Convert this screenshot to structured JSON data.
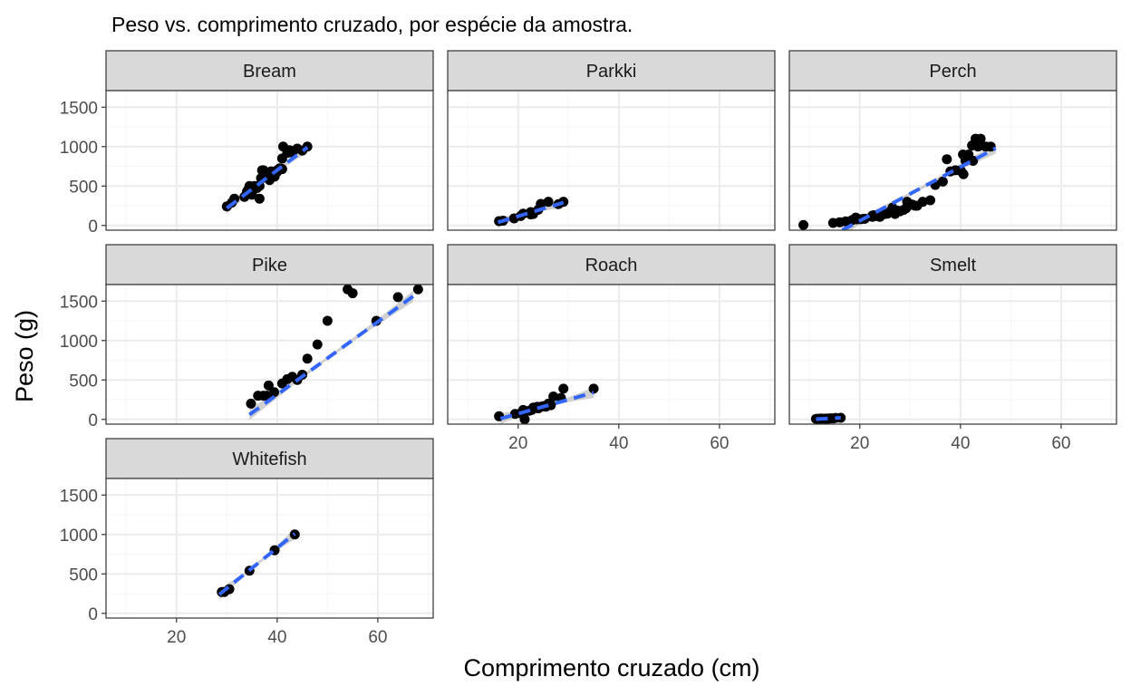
{
  "chart_data": {
    "type": "scatter",
    "title": "Peso vs. comprimento cruzado, por espécie da amostra.",
    "xlabel": "Comprimento cruzado (cm)",
    "ylabel": "Peso (g)",
    "xlim": [
      6,
      71
    ],
    "ylim": [
      -60,
      1710
    ],
    "x_ticks": [
      20,
      40,
      60
    ],
    "y_ticks": [
      0,
      500,
      1000,
      1500
    ],
    "grid": true,
    "colors": {
      "point": "#000000",
      "fit_line": "#3366ff",
      "ribbon": "#c8c8c8",
      "grid_major": "#ebebeb",
      "grid_minor": "#f5f5f5",
      "strip_fill": "#d9d9d9",
      "panel_border": "#333333"
    },
    "panels": [
      {
        "name": "Bream",
        "points": [
          [
            30,
            242
          ],
          [
            31,
            290
          ],
          [
            31.5,
            340
          ],
          [
            33.5,
            363
          ],
          [
            34,
            430
          ],
          [
            34.2,
            450
          ],
          [
            34.5,
            500
          ],
          [
            35,
            390
          ],
          [
            35,
            450
          ],
          [
            35.5,
            500
          ],
          [
            36,
            475
          ],
          [
            36.2,
            500
          ],
          [
            36.5,
            500
          ],
          [
            36.5,
            340
          ],
          [
            36.8,
            600
          ],
          [
            37,
            600
          ],
          [
            37,
            700
          ],
          [
            37.3,
            700
          ],
          [
            37.5,
            610
          ],
          [
            38,
            650
          ],
          [
            38.5,
            575
          ],
          [
            38.8,
            685
          ],
          [
            39.5,
            620
          ],
          [
            40,
            680
          ],
          [
            40,
            700
          ],
          [
            40.5,
            725
          ],
          [
            40.8,
            720
          ],
          [
            41,
            714
          ],
          [
            41,
            850
          ],
          [
            41.2,
            1000
          ],
          [
            42,
            920
          ],
          [
            42.5,
            955
          ],
          [
            43,
            925
          ],
          [
            44,
            975
          ],
          [
            45,
            950
          ],
          [
            46,
            1000
          ]
        ],
        "fit": {
          "x": [
            30,
            46
          ],
          "y": [
            220,
            990
          ]
        }
      },
      {
        "name": "Parkki",
        "points": [
          [
            16.2,
            55
          ],
          [
            17,
            60
          ],
          [
            19.2,
            90
          ],
          [
            20.5,
            120
          ],
          [
            21,
            150
          ],
          [
            22.5,
            140
          ],
          [
            22.5,
            170
          ],
          [
            23,
            145
          ],
          [
            24,
            200
          ],
          [
            24.5,
            273
          ],
          [
            26,
            300
          ],
          [
            28,
            270
          ],
          [
            29,
            300
          ]
        ],
        "fit": {
          "x": [
            16,
            29
          ],
          "y": [
            40,
            290
          ]
        }
      },
      {
        "name": "Perch",
        "points": [
          [
            8.8,
            5.9
          ],
          [
            14.7,
            32
          ],
          [
            16,
            40
          ],
          [
            17.2,
            51.5
          ],
          [
            18.5,
            70
          ],
          [
            19.2,
            100
          ],
          [
            19.4,
            78
          ],
          [
            20.2,
            80
          ],
          [
            20.8,
            85
          ],
          [
            21,
            85
          ],
          [
            22.5,
            110
          ],
          [
            22.5,
            115
          ],
          [
            22.5,
            125
          ],
          [
            22.8,
            130
          ],
          [
            23.5,
            120
          ],
          [
            23.5,
            120
          ],
          [
            23.5,
            130
          ],
          [
            24,
            135
          ],
          [
            24,
            110
          ],
          [
            24.2,
            130
          ],
          [
            24.5,
            150
          ],
          [
            25,
            145
          ],
          [
            25.5,
            150
          ],
          [
            25.9,
            170
          ],
          [
            26.5,
            225
          ],
          [
            27,
            145
          ],
          [
            27.5,
            188
          ],
          [
            28,
            180
          ],
          [
            28.7,
            197
          ],
          [
            29.2,
            218
          ],
          [
            29.4,
            300
          ],
          [
            30,
            260
          ],
          [
            30.4,
            265
          ],
          [
            31,
            250
          ],
          [
            31.4,
            250
          ],
          [
            32.5,
            300
          ],
          [
            34,
            320
          ],
          [
            35,
            514
          ],
          [
            36.5,
            556
          ],
          [
            37.3,
            840
          ],
          [
            38,
            685
          ],
          [
            39,
            700
          ],
          [
            40,
            700
          ],
          [
            40.1,
            690
          ],
          [
            40.5,
            900
          ],
          [
            40.6,
            650
          ],
          [
            41,
            820
          ],
          [
            41.5,
            850
          ],
          [
            41.6,
            900
          ],
          [
            42.3,
            1015
          ],
          [
            42.5,
            820
          ],
          [
            43,
            1100
          ],
          [
            43.5,
            1000
          ],
          [
            44,
            1100
          ],
          [
            45,
            1000
          ],
          [
            46,
            1000
          ]
        ],
        "fit": {
          "x": [
            16.5,
            47
          ],
          "y": [
            -60,
            980
          ]
        }
      },
      {
        "name": "Pike",
        "points": [
          [
            34.8,
            200
          ],
          [
            36.2,
            300
          ],
          [
            37.3,
            300
          ],
          [
            38,
            300
          ],
          [
            38.3,
            430
          ],
          [
            39.4,
            345
          ],
          [
            41,
            456
          ],
          [
            42,
            510
          ],
          [
            43,
            540
          ],
          [
            44,
            500
          ],
          [
            45,
            567
          ],
          [
            46,
            770
          ],
          [
            48,
            950
          ],
          [
            50,
            1250
          ],
          [
            54,
            1650
          ],
          [
            55,
            1600
          ],
          [
            59.7,
            1250
          ],
          [
            64,
            1550
          ],
          [
            68,
            1650
          ]
        ],
        "fit": {
          "x": [
            34.5,
            67
          ],
          "y": [
            60,
            1560
          ]
        }
      },
      {
        "name": "Roach",
        "points": [
          [
            16.2,
            40
          ],
          [
            19.4,
            69
          ],
          [
            20.5,
            78
          ],
          [
            20.8,
            87
          ],
          [
            21,
            120
          ],
          [
            21.3,
            0
          ],
          [
            22.2,
            110
          ],
          [
            22.7,
            120
          ],
          [
            23,
            150
          ],
          [
            23.5,
            145
          ],
          [
            23.8,
            160
          ],
          [
            24,
            140
          ],
          [
            24.5,
            160
          ],
          [
            25,
            169
          ],
          [
            25.5,
            161
          ],
          [
            26,
            200
          ],
          [
            26.5,
            180
          ],
          [
            27,
            290
          ],
          [
            28.5,
            272
          ],
          [
            29,
            390
          ],
          [
            35,
            390
          ]
        ],
        "fit": {
          "x": [
            16.5,
            35
          ],
          "y": [
            10,
            340
          ]
        }
      },
      {
        "name": "Smelt",
        "points": [
          [
            11.3,
            6.7
          ],
          [
            11.6,
            7.5
          ],
          [
            12,
            7
          ],
          [
            12.2,
            9.7
          ],
          [
            12.4,
            9.8
          ],
          [
            13,
            8.7
          ],
          [
            13.2,
            10
          ],
          [
            13.5,
            9.9
          ],
          [
            13.8,
            9.8
          ],
          [
            14,
            12.2
          ],
          [
            14.3,
            13.4
          ],
          [
            14.7,
            12.2
          ],
          [
            15.2,
            19.7
          ],
          [
            16.2,
            19.9
          ]
        ],
        "fit": {
          "x": [
            11.3,
            16.2
          ],
          "y": [
            3,
            21
          ]
        }
      },
      {
        "name": "Whitefish",
        "points": [
          [
            29,
            270
          ],
          [
            29.5,
            270
          ],
          [
            30.5,
            306
          ],
          [
            34.5,
            540
          ],
          [
            39.5,
            800
          ],
          [
            43.5,
            1000
          ]
        ],
        "fit": {
          "x": [
            28.5,
            43.5
          ],
          "y": [
            240,
            1010
          ]
        }
      }
    ]
  }
}
